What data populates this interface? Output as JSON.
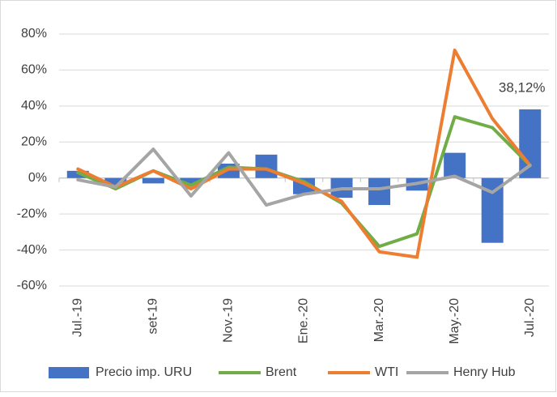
{
  "chart_data": {
    "type": "bar-line",
    "categories": [
      "Jul.-19",
      null,
      "set-19",
      null,
      "Nov.-19",
      null,
      "Ene.-20",
      null,
      "Mar.-20",
      null,
      "May.-20",
      null,
      "Jul.-20"
    ],
    "series": [
      {
        "name": "Precio imp. URU",
        "type": "bar",
        "color": "#4472c4",
        "values": [
          4,
          -4,
          -3,
          -4,
          8,
          13,
          -9,
          -11,
          -15,
          -7,
          14,
          -36,
          38.12
        ],
        "value_labels": [
          null,
          null,
          null,
          null,
          null,
          null,
          null,
          null,
          null,
          null,
          null,
          null,
          "38,12%"
        ]
      },
      {
        "name": "Brent",
        "type": "line",
        "color": "#70ad47",
        "values": [
          3,
          -6,
          4,
          -4,
          6,
          5,
          -2,
          -14,
          -38,
          -31,
          34,
          28,
          7
        ]
      },
      {
        "name": "WTI",
        "type": "line",
        "color": "#ed7d31",
        "values": [
          5,
          -5,
          4,
          -6,
          5,
          5,
          -3,
          -13,
          -41,
          -44,
          71,
          33,
          7
        ]
      },
      {
        "name": "Henry Hub",
        "type": "line",
        "color": "#a5a5a5",
        "values": [
          -1,
          -5,
          16,
          -10,
          14,
          -15,
          -9,
          -6,
          -6,
          -3,
          1,
          -8,
          7
        ]
      }
    ],
    "ylim": [
      -60,
      80
    ],
    "yticks": [
      {
        "value": -60,
        "label": "-60%"
      },
      {
        "value": -40,
        "label": "-40%"
      },
      {
        "value": -20,
        "label": "-20%"
      },
      {
        "value": 0,
        "label": "0%"
      },
      {
        "value": 20,
        "label": "20%"
      },
      {
        "value": 40,
        "label": "40%"
      },
      {
        "value": 60,
        "label": "60%"
      },
      {
        "value": 80,
        "label": "80%"
      }
    ],
    "grid": true,
    "legend": "bottom"
  }
}
